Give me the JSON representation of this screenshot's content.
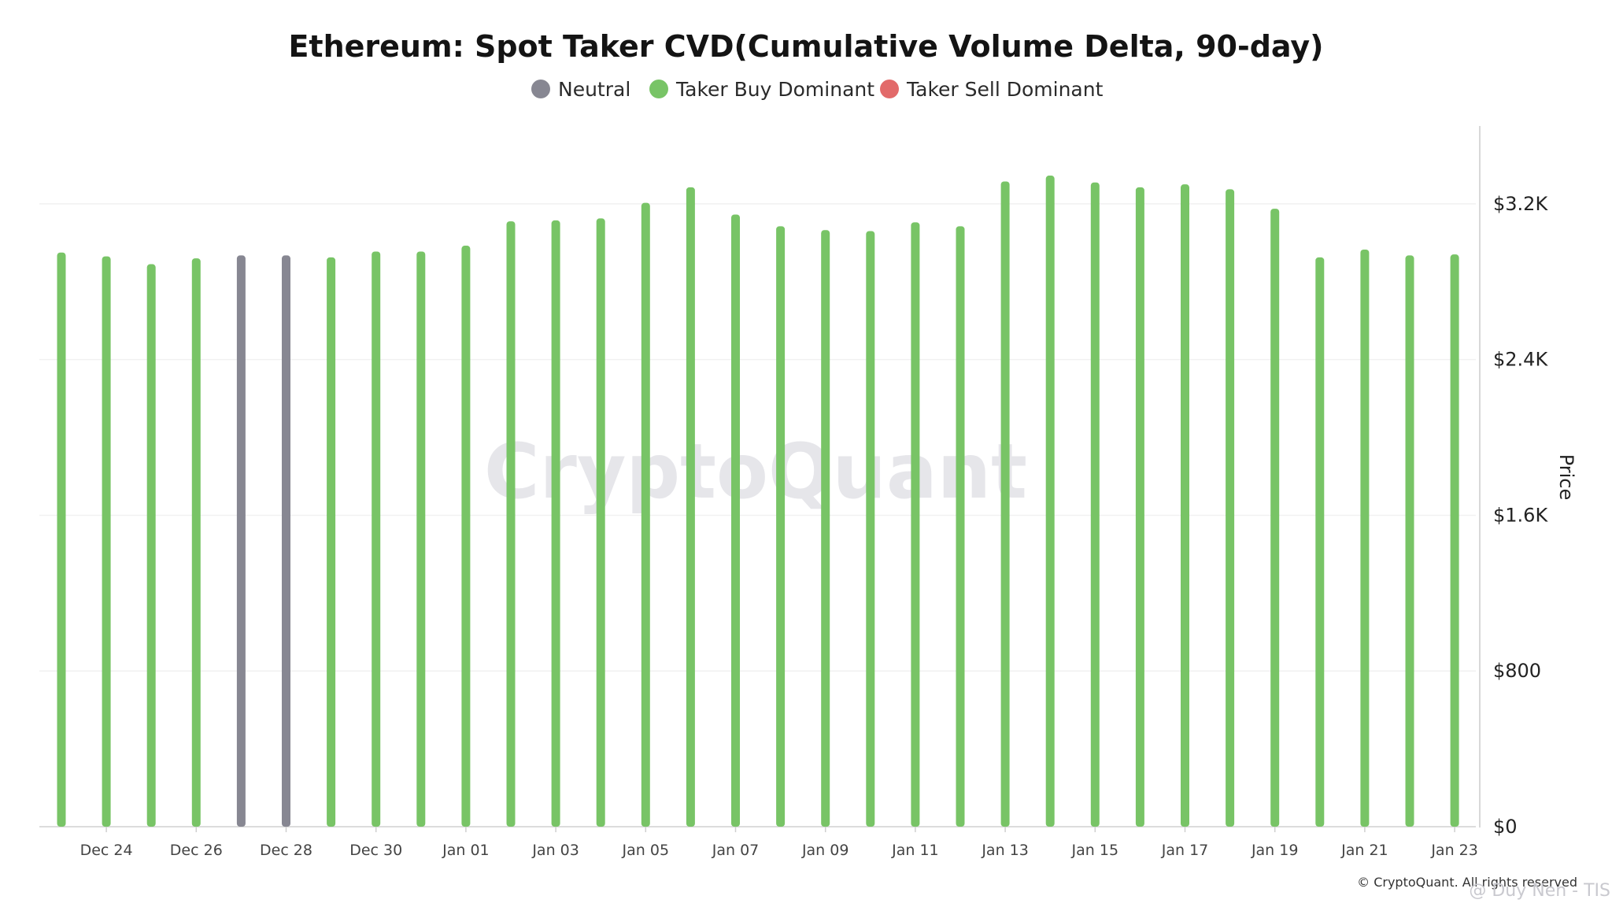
{
  "chart_data": {
    "type": "bar",
    "title": "Ethereum: Spot Taker CVD(Cumulative Volume Delta, 90-day)",
    "ylabel": "Price",
    "ylim": [
      0,
      3600
    ],
    "yticks": [
      "$0",
      "$800",
      "$1.6K",
      "$2.4K",
      "$3.2K"
    ],
    "ytick_values": [
      0,
      800,
      1600,
      2400,
      3200
    ],
    "xtick_labels": [
      "Dec 24",
      "Dec 26",
      "Dec 28",
      "Dec 30",
      "Jan 01",
      "Jan 03",
      "Jan 05",
      "Jan 07",
      "Jan 09",
      "Jan 11",
      "Jan 13",
      "Jan 15",
      "Jan 17",
      "Jan 19",
      "Jan 21",
      "Jan 23"
    ],
    "legend": [
      {
        "name": "Neutral",
        "color": "#878792"
      },
      {
        "name": "Taker Buy Dominant",
        "color": "#78c466"
      },
      {
        "name": "Taker Sell Dominant",
        "color": "#e26a6a"
      }
    ],
    "legend_placement": "top-center",
    "grid": true,
    "categories": [
      "Dec 23",
      "Dec 24",
      "Dec 25",
      "Dec 26",
      "Dec 27",
      "Dec 28",
      "Dec 29",
      "Dec 30",
      "Dec 31",
      "Jan 01",
      "Jan 02",
      "Jan 03",
      "Jan 04",
      "Jan 05",
      "Jan 06",
      "Jan 07",
      "Jan 08",
      "Jan 09",
      "Jan 10",
      "Jan 11",
      "Jan 12",
      "Jan 13",
      "Jan 14",
      "Jan 15",
      "Jan 16",
      "Jan 17",
      "Jan 18",
      "Jan 19",
      "Jan 20",
      "Jan 21",
      "Jan 22",
      "Jan 23"
    ],
    "values": [
      2950,
      2930,
      2890,
      2920,
      2935,
      2935,
      2925,
      2955,
      2955,
      2985,
      3110,
      3115,
      3125,
      3205,
      3285,
      3145,
      3085,
      3065,
      3060,
      3105,
      3085,
      3315,
      3345,
      3310,
      3285,
      3300,
      3275,
      3175,
      2925,
      2965,
      2935,
      2940
    ],
    "states": [
      "Taker Buy Dominant",
      "Taker Buy Dominant",
      "Taker Buy Dominant",
      "Taker Buy Dominant",
      "Neutral",
      "Neutral",
      "Taker Buy Dominant",
      "Taker Buy Dominant",
      "Taker Buy Dominant",
      "Taker Buy Dominant",
      "Taker Buy Dominant",
      "Taker Buy Dominant",
      "Taker Buy Dominant",
      "Taker Buy Dominant",
      "Taker Buy Dominant",
      "Taker Buy Dominant",
      "Taker Buy Dominant",
      "Taker Buy Dominant",
      "Taker Buy Dominant",
      "Taker Buy Dominant",
      "Taker Buy Dominant",
      "Taker Buy Dominant",
      "Taker Buy Dominant",
      "Taker Buy Dominant",
      "Taker Buy Dominant",
      "Taker Buy Dominant",
      "Taker Buy Dominant",
      "Taker Buy Dominant",
      "Taker Buy Dominant",
      "Taker Buy Dominant",
      "Taker Buy Dominant",
      "Taker Buy Dominant"
    ]
  },
  "watermark": "CryptoQuant",
  "footer": {
    "copyright": "© CryptoQuant. All rights reserved",
    "attribution": "@ Duy Nen - TIS"
  }
}
